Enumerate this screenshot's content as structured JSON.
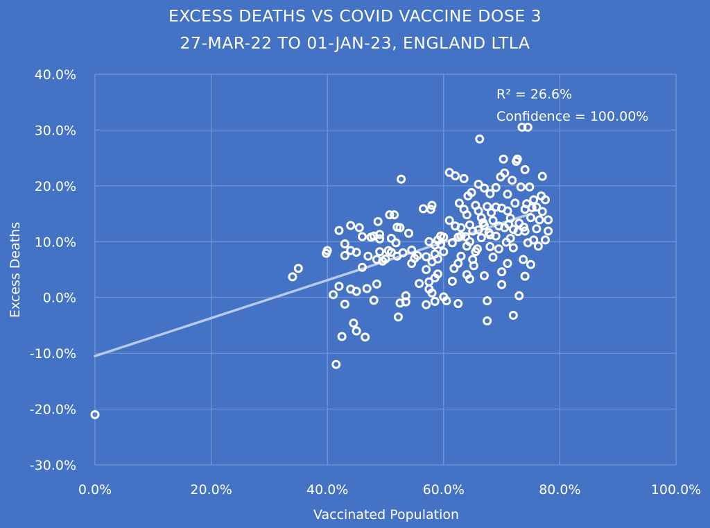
{
  "chart_data": {
    "type": "scatter",
    "title": "EXCESS DEATHS VS COVID VACCINE DOSE 3",
    "subtitle": "27-MAR-22 TO 01-JAN-23, ENGLAND LTLA",
    "xlabel": "Vaccinated Population",
    "ylabel": "Excess Deaths",
    "xlim": [
      0,
      100
    ],
    "ylim": [
      -30,
      40
    ],
    "x_ticks": [
      "0.0%",
      "20.0%",
      "40.0%",
      "60.0%",
      "80.0%",
      "100.0%"
    ],
    "y_ticks": [
      "-30.0%",
      "-20.0%",
      "-10.0%",
      "0.0%",
      "10.0%",
      "20.0%",
      "30.0%",
      "40.0%"
    ],
    "grid": true,
    "legend": "none",
    "annotations": [
      "R² = 26.6%",
      "Confidence = 100.00%"
    ],
    "trendline": {
      "x": [
        0,
        75
      ],
      "y": [
        -10.5,
        15
      ]
    },
    "points": [
      [
        0,
        -21
      ],
      [
        34,
        3.7
      ],
      [
        35,
        5.2
      ],
      [
        39.8,
        7.9
      ],
      [
        40,
        8.4
      ],
      [
        41,
        0.5
      ],
      [
        41.5,
        -12
      ],
      [
        42,
        2
      ],
      [
        42,
        12
      ],
      [
        42.5,
        -7
      ],
      [
        43,
        -1.2
      ],
      [
        43,
        7.5
      ],
      [
        43,
        9.6
      ],
      [
        44,
        1.5
      ],
      [
        44,
        8.4
      ],
      [
        44,
        12.9
      ],
      [
        44.5,
        -4.6
      ],
      [
        45,
        1.1
      ],
      [
        45,
        -6
      ],
      [
        45,
        8.1
      ],
      [
        45.5,
        12.5
      ],
      [
        46,
        10.9
      ],
      [
        46,
        5.4
      ],
      [
        46.5,
        -7.1
      ],
      [
        46.8,
        1.6
      ],
      [
        47,
        7.4
      ],
      [
        47.5,
        10.8
      ],
      [
        48,
        -0.5
      ],
      [
        48,
        11
      ],
      [
        48.5,
        6.8
      ],
      [
        48.5,
        2.4
      ],
      [
        48.7,
        13.6
      ],
      [
        49,
        10.5
      ],
      [
        49,
        8.2
      ],
      [
        49,
        11.3
      ],
      [
        49.5,
        6.5
      ],
      [
        50,
        6.9
      ],
      [
        50.5,
        8.4
      ],
      [
        50.7,
        14.8
      ],
      [
        51,
        10.6
      ],
      [
        51,
        8.1
      ],
      [
        51.5,
        14.8
      ],
      [
        51.8,
        9.8
      ],
      [
        52,
        12.6
      ],
      [
        52,
        7.4
      ],
      [
        52.2,
        -3.5
      ],
      [
        52.5,
        -1
      ],
      [
        52.5,
        12.5
      ],
      [
        52.7,
        21.2
      ],
      [
        53,
        8
      ],
      [
        53.5,
        0.3
      ],
      [
        53.5,
        -0.8
      ],
      [
        54,
        11.5
      ],
      [
        54.5,
        6.1
      ],
      [
        54.5,
        8.5
      ],
      [
        55,
        7
      ],
      [
        55.5,
        7.5
      ],
      [
        55.8,
        2.5
      ],
      [
        56.5,
        15.9
      ],
      [
        57,
        -1.3
      ],
      [
        57,
        7.3
      ],
      [
        57,
        5
      ],
      [
        57.5,
        1.5
      ],
      [
        57.5,
        2.8
      ],
      [
        57.5,
        10
      ],
      [
        57.8,
        15.8
      ],
      [
        58,
        6.4
      ],
      [
        58,
        16.5
      ],
      [
        58,
        0.8
      ],
      [
        58.5,
        9.4
      ],
      [
        58.5,
        -0.7
      ],
      [
        58.5,
        3.5
      ],
      [
        58.5,
        7.8
      ],
      [
        59,
        4.2
      ],
      [
        59,
        10.3
      ],
      [
        59,
        6.9
      ],
      [
        59.5,
        11
      ],
      [
        59.5,
        9.5
      ],
      [
        60,
        8.2
      ],
      [
        60,
        10.8
      ],
      [
        60,
        0.1
      ],
      [
        60.5,
        -0.6
      ],
      [
        61,
        13.8
      ],
      [
        61,
        22.4
      ],
      [
        61.5,
        9.8
      ],
      [
        61.5,
        2.9
      ],
      [
        61.8,
        5.2
      ],
      [
        62,
        12.8
      ],
      [
        62,
        21.8
      ],
      [
        62.5,
        -1.1
      ],
      [
        62.5,
        6.1
      ],
      [
        62.5,
        10.8
      ],
      [
        62.7,
        16.9
      ],
      [
        63,
        12.5
      ],
      [
        63,
        11
      ],
      [
        63,
        7.4
      ],
      [
        63.5,
        15.8
      ],
      [
        63.5,
        21.3
      ],
      [
        64,
        9.2
      ],
      [
        64,
        4.1
      ],
      [
        64,
        14.8
      ],
      [
        64.5,
        3.3
      ],
      [
        64.5,
        10
      ],
      [
        64.5,
        13
      ],
      [
        64.8,
        18.8
      ],
      [
        65,
        11.9
      ],
      [
        65,
        6.8
      ],
      [
        65.5,
        16.5
      ],
      [
        65.5,
        8.2
      ],
      [
        66,
        20.3
      ],
      [
        66,
        12.1
      ],
      [
        66,
        15.5
      ],
      [
        66.2,
        28.4
      ],
      [
        66.5,
        10.7
      ],
      [
        66.5,
        14.3
      ],
      [
        67,
        12.9
      ],
      [
        67,
        19.6
      ],
      [
        67,
        3.9
      ],
      [
        67.5,
        -0.6
      ],
      [
        67.5,
        -4.2
      ],
      [
        67.5,
        16.3
      ],
      [
        68,
        11.2
      ],
      [
        68,
        9.1
      ],
      [
        68,
        18.6
      ],
      [
        68.5,
        7.2
      ],
      [
        68.5,
        13.8
      ],
      [
        69,
        11
      ],
      [
        69,
        16.2
      ],
      [
        69,
        19.7
      ],
      [
        69.5,
        8.7
      ],
      [
        69.5,
        12.8
      ],
      [
        70,
        2.3
      ],
      [
        70,
        16
      ],
      [
        70,
        4.6
      ],
      [
        70.3,
        24.8
      ],
      [
        70.5,
        22.3
      ],
      [
        70.5,
        12.5
      ],
      [
        71,
        15.5
      ],
      [
        71,
        6.1
      ],
      [
        71,
        18.5
      ],
      [
        71.5,
        10.6
      ],
      [
        71.5,
        14.2
      ],
      [
        71.8,
        21
      ],
      [
        72,
        -3.2
      ],
      [
        72,
        8.9
      ],
      [
        72,
        12.2
      ],
      [
        72.3,
        16.9
      ],
      [
        72.5,
        24.4
      ],
      [
        72.7,
        24.8
      ],
      [
        73,
        0.3
      ],
      [
        73,
        13.3
      ],
      [
        73.3,
        19.8
      ],
      [
        73.5,
        30.5
      ],
      [
        73.7,
        6.8
      ],
      [
        74,
        15.8
      ],
      [
        74,
        11.9
      ],
      [
        74,
        22.9
      ],
      [
        74,
        3.8
      ],
      [
        74.3,
        16.8
      ],
      [
        74.5,
        30.5
      ],
      [
        74.5,
        9.8
      ],
      [
        74.8,
        19.8
      ],
      [
        75,
        14.3
      ],
      [
        75,
        5.9
      ],
      [
        75.5,
        10.3
      ],
      [
        75.5,
        17.5
      ],
      [
        76,
        12.3
      ],
      [
        76,
        16.2
      ],
      [
        76.3,
        9.2
      ],
      [
        76.5,
        13.9
      ],
      [
        77,
        21.7
      ],
      [
        77,
        15.4
      ],
      [
        77.5,
        10.3
      ],
      [
        77.5,
        17.5
      ],
      [
        78,
        11.9
      ],
      [
        78,
        13.9
      ],
      [
        64.2,
        18.2
      ],
      [
        65.2,
        5.7
      ],
      [
        66.8,
        13.4
      ],
      [
        68.2,
        15.2
      ],
      [
        70.8,
        9.9
      ],
      [
        71.2,
        13.1
      ],
      [
        72.8,
        11.8
      ],
      [
        73.8,
        12.6
      ],
      [
        75.2,
        16.1
      ],
      [
        76.8,
        18.2
      ],
      [
        69.8,
        21.6
      ],
      [
        63.8,
        10.9
      ],
      [
        67.8,
        11.6
      ],
      [
        65.8,
        8.7
      ]
    ]
  }
}
